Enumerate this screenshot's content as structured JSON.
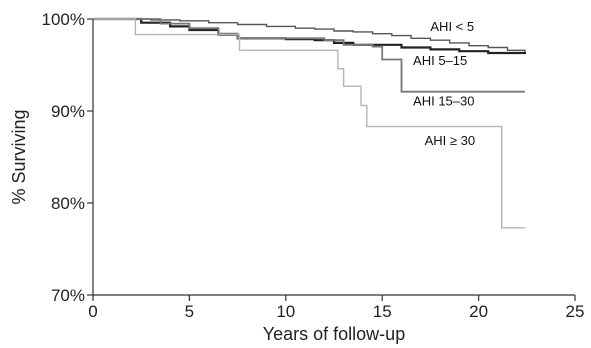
{
  "chart_data": {
    "type": "line",
    "title": "",
    "xlabel": "Years of follow-up",
    "ylabel": "% Surviving",
    "xlim": [
      0,
      25
    ],
    "ylim": [
      70,
      100
    ],
    "x_ticks": [
      0,
      5,
      10,
      15,
      20,
      25
    ],
    "y_ticks": [
      70,
      80,
      90,
      100
    ],
    "x_tick_labels": [
      "0",
      "5",
      "10",
      "15",
      "20",
      "25"
    ],
    "y_tick_labels": [
      "70%",
      "80%",
      "90%",
      "100%"
    ],
    "grid": false,
    "series": [
      {
        "name": "AHI < 5",
        "color": "#555555",
        "x": [
          0,
          3,
          4.5,
          6,
          7.5,
          9,
          10.5,
          11.5,
          12.5,
          13.5,
          14.5,
          15.5,
          16.5,
          17.5,
          18.5,
          19.5,
          20.5,
          21.5,
          22.4
        ],
        "y": [
          100,
          99.9,
          99.8,
          99.6,
          99.4,
          99.2,
          99.0,
          98.9,
          98.7,
          98.6,
          98.4,
          98.2,
          97.9,
          97.7,
          97.4,
          97.1,
          96.9,
          96.6,
          96.4
        ]
      },
      {
        "name": "AHI 5–15",
        "color": "#222222",
        "x": [
          0,
          2.5,
          4.0,
          5.0,
          6.5,
          7.5,
          10.0,
          11.5,
          12.5,
          13.5,
          16.0,
          17.5,
          19.0,
          20.5,
          22.4
        ],
        "y": [
          100,
          99.6,
          99.2,
          98.8,
          98.3,
          97.9,
          97.8,
          97.7,
          97.4,
          97.2,
          96.9,
          96.7,
          96.5,
          96.3,
          96.2
        ]
      },
      {
        "name": "AHI 15–30",
        "color": "#777777",
        "x": [
          0,
          3.5,
          5.0,
          6.5,
          7.5,
          12.0,
          13.0,
          14.5,
          15.0,
          16.0,
          22.4
        ],
        "y": [
          100,
          99.5,
          99.0,
          98.4,
          97.9,
          97.7,
          97.2,
          97.0,
          95.6,
          92.1,
          92.1
        ]
      },
      {
        "name": "AHI ≥ 30",
        "color": "#b5b5b5",
        "x": [
          0,
          2.2,
          7.6,
          12.7,
          13.0,
          13.9,
          14.2,
          21.2,
          22.4
        ],
        "y": [
          100,
          98.3,
          96.6,
          94.6,
          92.7,
          90.6,
          88.3,
          77.3,
          77.3
        ]
      }
    ],
    "labels": [
      "AHI < 5",
      "AHI 5–15",
      "AHI 15–30",
      "AHI ≥ 30"
    ]
  }
}
